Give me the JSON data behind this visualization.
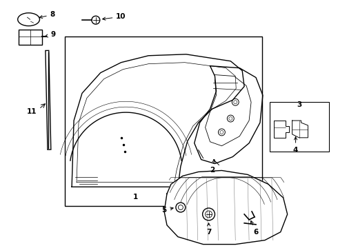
{
  "background_color": "#ffffff",
  "line_color": "#000000",
  "line_width": 1.0,
  "font_size": 7.5,
  "parts_labels": [
    "1",
    "2",
    "3",
    "4",
    "5",
    "6",
    "7",
    "8",
    "9",
    "10",
    "11"
  ]
}
